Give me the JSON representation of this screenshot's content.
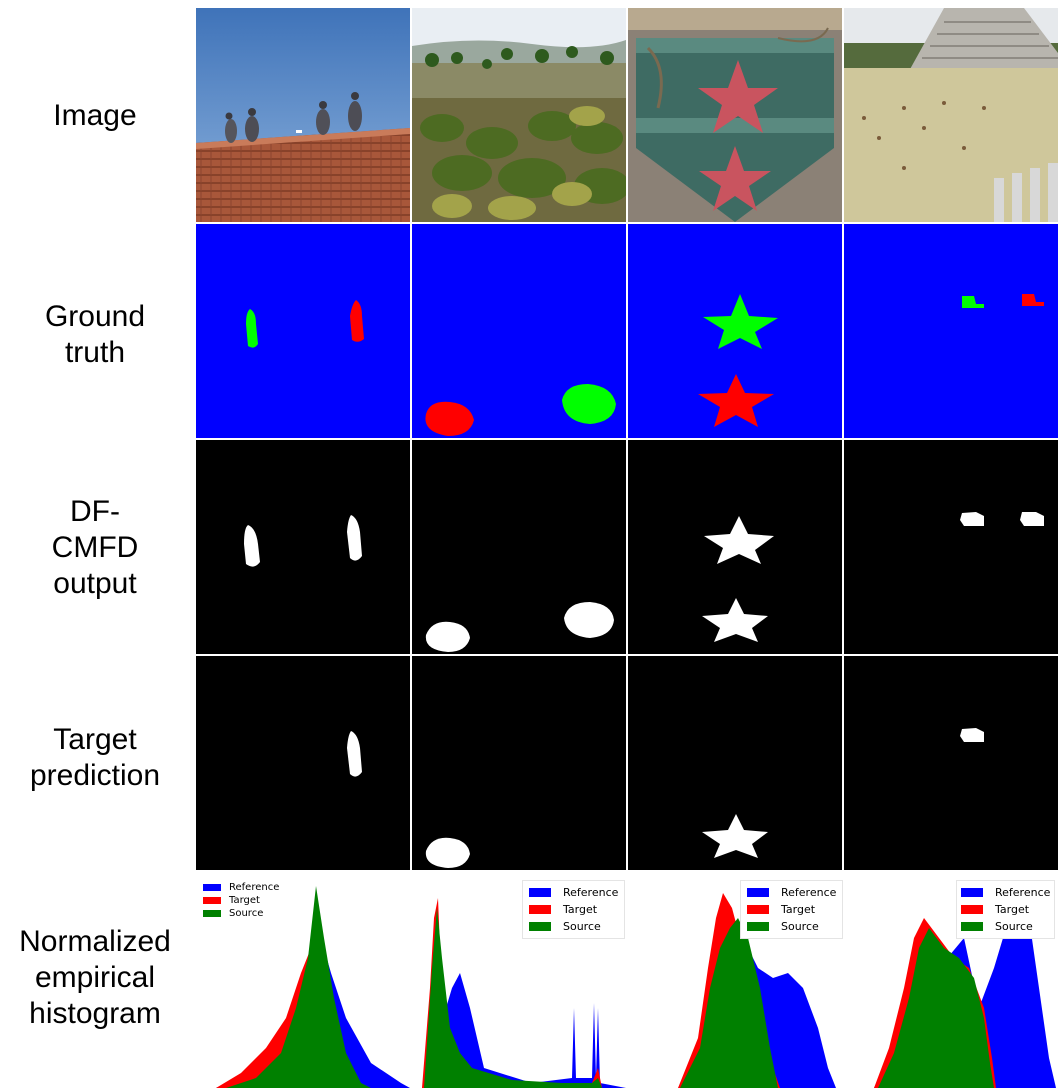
{
  "row_labels": {
    "image": "Image",
    "ground_truth": "Ground\ntruth",
    "dfcmfd": "DF-\nCMFD\noutput",
    "target": "Target\nprediction",
    "histogram": "Normalized\nempirical\nhistogram"
  },
  "legend": {
    "reference": "Reference",
    "target": "Target",
    "source": "Source"
  },
  "colors": {
    "reference": "#0000ff",
    "target": "#ff0000",
    "source": "#008000",
    "gt_background": "#0000ff",
    "gt_source": "#00ff00",
    "gt_target": "#ff0000",
    "mask_bg": "#000000",
    "mask_fg": "#ffffff"
  },
  "photos": [
    "birds-on-roof",
    "shrubland-landscape",
    "green-sign-red-stars",
    "stepped-pyramid"
  ]
}
